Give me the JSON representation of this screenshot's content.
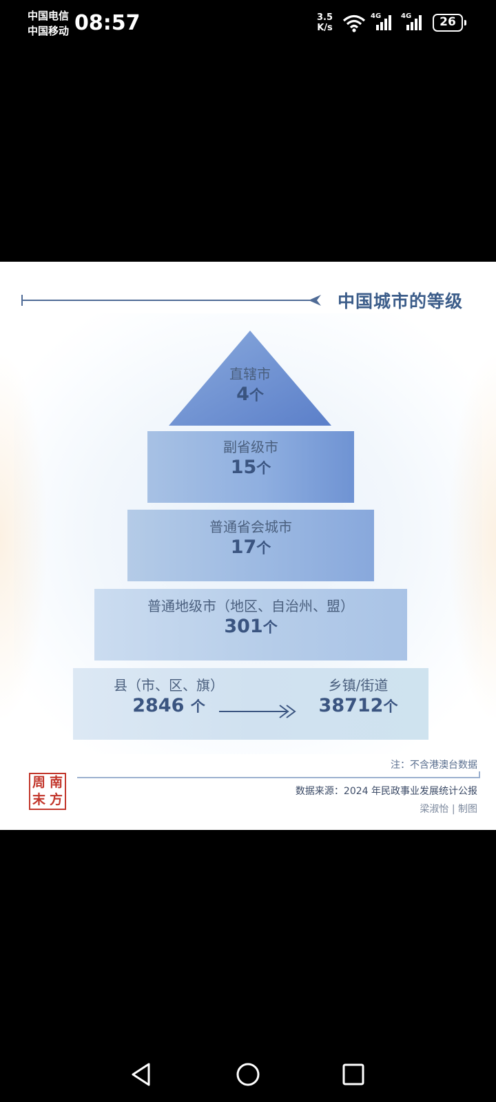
{
  "status_bar": {
    "carrier_1": "中国电信",
    "carrier_2": "中国移动",
    "time": "08:57",
    "net_speed_value": "3.5",
    "net_speed_unit": "K/s",
    "sim1_label": "4G",
    "sim2_label": "4G",
    "battery": "26"
  },
  "infographic": {
    "title": "中国城市的等级",
    "tiers": [
      {
        "name": "直辖市",
        "count": "4",
        "unit": "个"
      },
      {
        "name": "副省级市",
        "count": "15",
        "unit": "个"
      },
      {
        "name": "普通省会城市",
        "count": "17",
        "unit": "个"
      },
      {
        "name": "普通地级市（地区、自治州、盟）",
        "count": "301",
        "unit": "个"
      }
    ],
    "bottom": {
      "left_name": "县（市、区、旗）",
      "left_count": "2846",
      "left_unit": "个",
      "right_name": "乡镇/街道",
      "right_count": "38712",
      "right_unit": "个"
    },
    "note": "注：不含港澳台数据",
    "source": "数据来源：2024 年民政事业发展统计公报",
    "credit": "梁淑怡 | 制图",
    "seal_chars": [
      "周",
      "南",
      "末",
      "方"
    ]
  },
  "colors": {
    "title": "#3c5d8a",
    "seal": "#c2362b"
  },
  "icons": [
    "wifi-icon",
    "signal-icon",
    "battery-icon",
    "back-icon",
    "home-icon",
    "recents-icon",
    "double-arrow-icon"
  ]
}
